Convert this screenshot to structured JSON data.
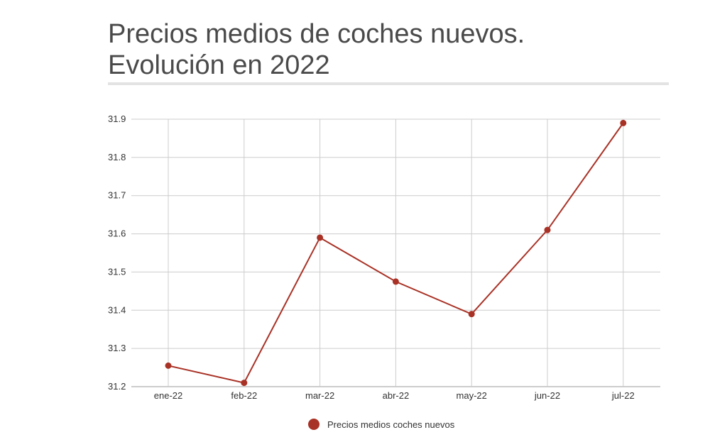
{
  "title_line1": "Precios medios de coches nuevos.",
  "title_line2": "Evolución en 2022",
  "colors": {
    "series": "#a93226",
    "grid": "#cccccc",
    "title": "#4a4a4a",
    "rule": "#e3e3e3"
  },
  "chart_data": {
    "type": "line",
    "categories": [
      "ene-22",
      "feb-22",
      "mar-22",
      "abr-22",
      "may-22",
      "jun-22",
      "jul-22"
    ],
    "series": [
      {
        "name": "Precios medios coches nuevos",
        "values": [
          31.255,
          31.21,
          31.59,
          31.475,
          31.39,
          31.61,
          31.89
        ]
      }
    ],
    "yticks": [
      "31.2",
      "31.3",
      "31.4",
      "31.5",
      "31.6",
      "31.7",
      "31.8",
      "31.9"
    ],
    "ylim": [
      31.2,
      31.9
    ],
    "grid": true,
    "legend": "bottom-center"
  }
}
